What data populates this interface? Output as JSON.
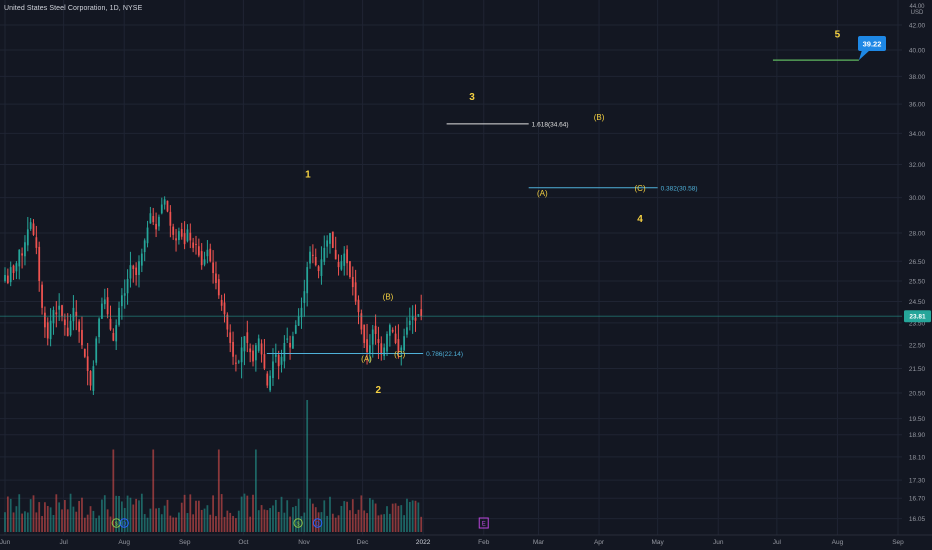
{
  "header": {
    "title": "United States Steel Corporation, 1D, NYSE"
  },
  "colors": {
    "background": "#131722",
    "grid": "#1f2433",
    "up": "#26a69a",
    "down": "#ef5350",
    "wave_label": "#f5d142",
    "fib_white": "#e0e0e0",
    "fib_blue": "#4fb1d9",
    "target_line": "#5fb760",
    "price_marker": "#1e88e5",
    "last_price_bg": "#26a69a",
    "axis_text": "#9598a1"
  },
  "chart_data": {
    "type": "candlestick",
    "symbol": "X",
    "title": "United States Steel Corporation, 1D, NYSE",
    "y_axis": {
      "unit": "USD",
      "scale": "log",
      "range": [
        15.6,
        44.5
      ],
      "tick_labels": [
        "44.00",
        "42.00",
        "40.00",
        "38.00",
        "36.00",
        "34.00",
        "32.00",
        "30.00",
        "28.00",
        "26.50",
        "25.50",
        "24.50",
        "23.50",
        "22.50",
        "21.50",
        "20.50",
        "19.50",
        "18.90",
        "18.10",
        "17.30",
        "16.70",
        "16.05"
      ]
    },
    "x_axis": {
      "tick_labels": [
        "Jun",
        "Jul",
        "Aug",
        "Sep",
        "Oct",
        "Nov",
        "Dec",
        "2022",
        "Feb",
        "Mar",
        "Apr",
        "May",
        "Jun",
        "Jul",
        "Aug",
        "Sep"
      ]
    },
    "last_price": 23.81,
    "price_marker": 39.22,
    "wave_labels": [
      {
        "text": "1",
        "date": "2021-11-03",
        "price": 31.2
      },
      {
        "text": "2",
        "date": "2021-12-09",
        "price": 20.5
      },
      {
        "text": "3",
        "date": "2022-01-26",
        "price": 36.3
      },
      {
        "text": "4",
        "date": "2022-04-22",
        "price": 28.6
      },
      {
        "text": "5",
        "date": "2022-08-01",
        "price": 41.0
      },
      {
        "text": "(A)",
        "date": "2021-12-03",
        "price": 21.8
      },
      {
        "text": "(B)",
        "date": "2021-12-14",
        "price": 24.6
      },
      {
        "text": "(C)",
        "date": "2021-12-20",
        "price": 22.0
      },
      {
        "text": "(A)",
        "date": "2022-03-03",
        "price": 30.1
      },
      {
        "text": "(B)",
        "date": "2022-04-01",
        "price": 34.9
      },
      {
        "text": "(C)",
        "date": "2022-04-22",
        "price": 30.4
      }
    ],
    "fib_levels": [
      {
        "label": "1.618(34.64)",
        "price": 34.64,
        "from": "2022-01-13",
        "to": "2022-02-24",
        "color": "white"
      },
      {
        "label": "0.382(30.58)",
        "price": 30.58,
        "from": "2022-02-24",
        "to": "2022-05-01",
        "color": "blue"
      },
      {
        "label": "0.786(22.14)",
        "price": 22.14,
        "from": "2021-10-13",
        "to": "2022-01-01",
        "color": "blue"
      }
    ],
    "target_line": {
      "price": 39.22,
      "from": "2022-06-29",
      "to": "2022-08-12"
    },
    "candles": {
      "start_date": "2021-06-01",
      "end_date": "2021-12-31",
      "closes": [
        25.8,
        25.4,
        26.2,
        25.9,
        26.4,
        27.1,
        26.8,
        27.5,
        28.2,
        28.6,
        27.9,
        27.2,
        25.5,
        24.2,
        23.3,
        22.8,
        23.6,
        24.1,
        23.9,
        24.3,
        23.8,
        23.4,
        22.9,
        23.6,
        24.2,
        23.8,
        23.1,
        22.5,
        22.0,
        21.4,
        20.8,
        21.6,
        22.8,
        23.7,
        24.4,
        24.6,
        23.9,
        23.2,
        22.7,
        23.4,
        24.2,
        24.8,
        24.9,
        25.6,
        26.3,
        26.1,
        25.8,
        26.5,
        26.9,
        27.6,
        28.3,
        29.1,
        28.6,
        28.2,
        28.9,
        29.6,
        29.9,
        29.2,
        28.4,
        27.9,
        27.6,
        28.1,
        27.8,
        27.4,
        28.2,
        27.6,
        27.2,
        27.4,
        26.8,
        26.3,
        26.6,
        27.1,
        26.5,
        25.9,
        25.4,
        24.8,
        24.3,
        23.9,
        23.2,
        22.6,
        22.0,
        21.7,
        21.8,
        22.4,
        22.9,
        22.6,
        22.2,
        21.8,
        22.5,
        22.8,
        22.1,
        21.5,
        20.8,
        21.2,
        21.8,
        22.1,
        21.6,
        22.0,
        22.6,
        22.8,
        22.4,
        22.9,
        23.4,
        23.8,
        24.2,
        25.0,
        26.2,
        27.0,
        26.8,
        26.3,
        26.0,
        26.6,
        27.2,
        27.6,
        28.0,
        27.2,
        26.6,
        26.2,
        26.5,
        26.9,
        26.4,
        25.7,
        25.2,
        24.5,
        24.0,
        23.2,
        22.6,
        22.2,
        22.5,
        23.2,
        23.0,
        22.6,
        22.1,
        22.4,
        23.0,
        23.4,
        23.1,
        22.6,
        22.2,
        22.4,
        22.9,
        23.3,
        23.6,
        23.8,
        23.6,
        23.9,
        23.81
      ],
      "volume_scale": "relative"
    }
  }
}
